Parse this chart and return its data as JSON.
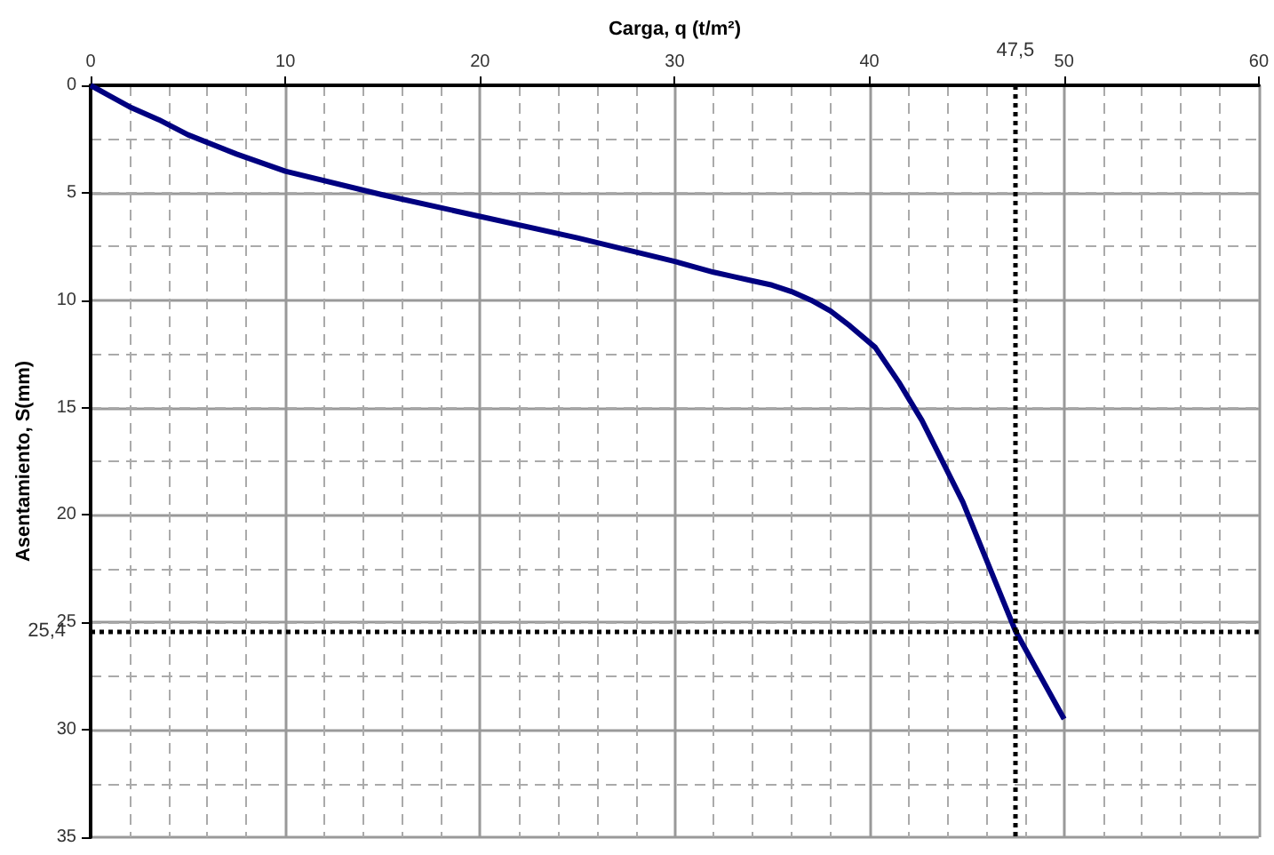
{
  "chart_data": {
    "type": "line",
    "xlabel": "Carga, q (t/m²)",
    "ylabel": "Asentamiento, S(mm)",
    "x": [
      0,
      1,
      2,
      3.5,
      5,
      7.5,
      10,
      15,
      20,
      25,
      30,
      32,
      33,
      34,
      35,
      36,
      37,
      38,
      39,
      40.3,
      41.5,
      42.7,
      44.8,
      47.5,
      50
    ],
    "series": [
      {
        "color": "#000080",
        "values": [
          0,
          0.5,
          1.0,
          1.6,
          2.3,
          3.2,
          4.0,
          5.1,
          6.1,
          7.1,
          8.2,
          8.7,
          8.9,
          9.1,
          9.3,
          9.6,
          10.0,
          10.5,
          11.2,
          12.2,
          13.8,
          15.6,
          19.4,
          25.4,
          29.5
        ]
      }
    ],
    "xlim": [
      0,
      60
    ],
    "xticks": [
      0,
      10,
      20,
      30,
      40,
      50,
      60
    ],
    "ylim": [
      35,
      0
    ],
    "yticks": [
      0,
      5,
      10,
      15,
      20,
      25,
      30,
      35
    ],
    "ref_lines": [
      {
        "axis": "x",
        "value": 47.5,
        "label": "47,5",
        "color": "#000000",
        "line_style": "dotted"
      },
      {
        "axis": "y",
        "value": 25.4,
        "label": "25,4",
        "color": "#000000",
        "line_style": "dotted"
      }
    ],
    "grid": true,
    "marker": "none",
    "line_style": "solid"
  }
}
